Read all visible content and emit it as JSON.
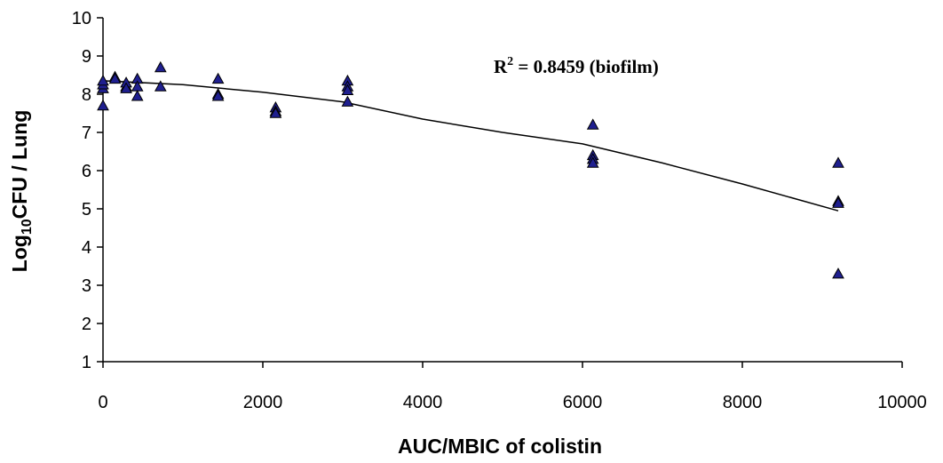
{
  "chart_data": {
    "type": "scatter",
    "title": "",
    "xlabel": "AUC/MBIC of colistin",
    "ylabel_main": "Log",
    "ylabel_sub": "10",
    "ylabel_rest": "CFU / Lung",
    "xlim": [
      0,
      10000
    ],
    "ylim": [
      1,
      10
    ],
    "xticks": [
      0,
      2000,
      4000,
      6000,
      8000,
      10000
    ],
    "yticks": [
      1,
      2,
      3,
      4,
      5,
      6,
      7,
      8,
      9,
      10
    ],
    "grid": false,
    "marker": "triangle",
    "marker_color": "#1f1f8f",
    "series": [
      {
        "points": [
          [
            0,
            8.15
          ],
          [
            0,
            8.25
          ],
          [
            0,
            8.35
          ],
          [
            0,
            7.7
          ],
          [
            150,
            8.45
          ],
          [
            150,
            8.4
          ],
          [
            290,
            8.2
          ],
          [
            290,
            8.3
          ],
          [
            290,
            8.15
          ],
          [
            430,
            8.4
          ],
          [
            430,
            8.2
          ],
          [
            430,
            7.95
          ],
          [
            720,
            8.7
          ],
          [
            720,
            8.2
          ],
          [
            1440,
            8.4
          ],
          [
            1440,
            8.0
          ],
          [
            1440,
            7.95
          ],
          [
            2160,
            7.65
          ],
          [
            2160,
            7.55
          ],
          [
            2160,
            7.5
          ],
          [
            3060,
            8.35
          ],
          [
            3060,
            8.2
          ],
          [
            3060,
            8.1
          ],
          [
            3060,
            7.8
          ],
          [
            6130,
            7.2
          ],
          [
            6130,
            6.4
          ],
          [
            6130,
            6.3
          ],
          [
            6130,
            6.2
          ],
          [
            9200,
            6.2
          ],
          [
            9200,
            5.2
          ],
          [
            9200,
            5.15
          ],
          [
            9200,
            3.3
          ]
        ]
      }
    ],
    "trendline": [
      [
        0,
        8.35
      ],
      [
        1000,
        8.25
      ],
      [
        2000,
        8.05
      ],
      [
        3000,
        7.8
      ],
      [
        4000,
        7.35
      ],
      [
        5000,
        7.0
      ],
      [
        6000,
        6.7
      ],
      [
        7000,
        6.2
      ],
      [
        8000,
        5.65
      ],
      [
        9200,
        4.95
      ]
    ],
    "annotation": {
      "prefix": "R",
      "superscript": "2",
      "suffix": " = 0.8459 (biofilm)"
    }
  }
}
